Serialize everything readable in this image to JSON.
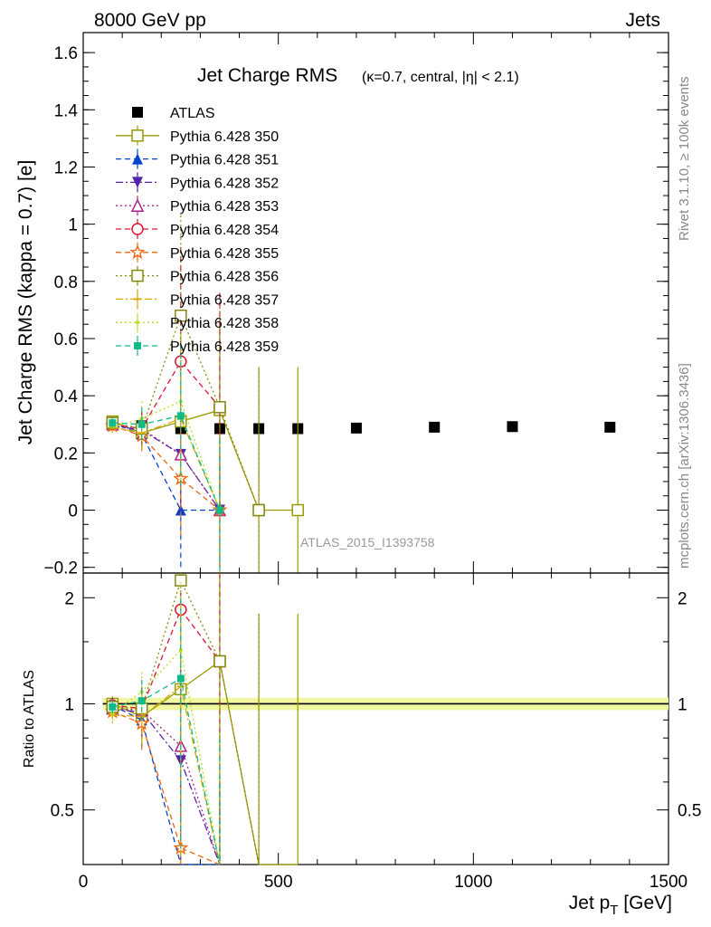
{
  "header": {
    "left": "8000 GeV pp",
    "right": "Jets"
  },
  "side_text": {
    "rivet": "Rivet 3.1.10, ≥ 100k events",
    "mcplots": "mcplots.cern.ch [arXiv:1306.3436]"
  },
  "watermark": "ATLAS_2015_I1393758",
  "chart_data": [
    {
      "type": "line",
      "panel": "main",
      "title": "Jet Charge RMS",
      "subtitle": "(κ=0.7, central, |η| < 2.1)",
      "xlabel": "",
      "ylabel": "Jet Charge RMS (kappa = 0.7) [e]",
      "xlim": [
        0,
        1500
      ],
      "ylim": [
        -0.22,
        1.67
      ],
      "yticks": [
        -0.2,
        0,
        0.2,
        0.4,
        0.6,
        0.8,
        1,
        1.2,
        1.4,
        1.6
      ],
      "ytick_labels": [
        "−0.2",
        "0",
        "0.2",
        "0.4",
        "0.6",
        "0.8",
        "1",
        "1.2",
        "1.4",
        "1.6"
      ],
      "legend_position": "top-left",
      "series": [
        {
          "name": "ATLAS",
          "color": "#000000",
          "marker": "square-filled",
          "line": "none",
          "x": [
            75,
            150,
            250,
            350,
            450,
            550,
            700,
            900,
            1100,
            1350
          ],
          "y": [
            0.31,
            0.295,
            0.285,
            0.285,
            0.285,
            0.285,
            0.287,
            0.29,
            0.292,
            0.29
          ],
          "err": [
            0.01,
            0.01,
            0.008,
            0.008,
            0.008,
            0.008,
            0.008,
            0.008,
            0.008,
            0.008
          ]
        },
        {
          "name": "Pythia 6.428 350",
          "color": "#999900",
          "marker": "square-open",
          "line": "solid",
          "x": [
            75,
            150,
            250,
            350,
            450,
            550
          ],
          "y": [
            0.31,
            0.27,
            0.31,
            0.35,
            0.0,
            0.0
          ],
          "err": [
            0.02,
            0.05,
            0.3,
            0.3,
            0.5,
            0.5
          ]
        },
        {
          "name": "Pythia 6.428 351",
          "color": "#0044cc",
          "marker": "triangle-up-filled",
          "line": "dashed",
          "x": [
            75,
            150,
            250,
            350
          ],
          "y": [
            0.305,
            0.265,
            0.0,
            0.0
          ],
          "err": [
            0.02,
            0.06,
            0.2,
            0.2
          ]
        },
        {
          "name": "Pythia 6.428 352",
          "color": "#5522aa",
          "marker": "triangle-down-filled",
          "line": "dashdot",
          "x": [
            75,
            150,
            250,
            350
          ],
          "y": [
            0.295,
            0.28,
            0.195,
            0.0
          ],
          "err": [
            0.02,
            0.06,
            0.2,
            0.2
          ]
        },
        {
          "name": "Pythia 6.428 353",
          "color": "#aa2288",
          "marker": "triangle-up-open",
          "line": "dotted",
          "x": [
            75,
            150,
            250,
            350
          ],
          "y": [
            0.3,
            0.285,
            0.195,
            0.0
          ],
          "err": [
            0.02,
            0.06,
            0.2,
            0.2
          ]
        },
        {
          "name": "Pythia 6.428 354",
          "color": "#dd1133",
          "marker": "circle-open",
          "line": "dashed",
          "x": [
            75,
            150,
            250,
            350
          ],
          "y": [
            0.3,
            0.285,
            0.52,
            0.36
          ],
          "err": [
            0.02,
            0.06,
            0.4,
            0.4
          ]
        },
        {
          "name": "Pythia 6.428 355",
          "color": "#ee6611",
          "marker": "star-open",
          "line": "dashed",
          "x": [
            75,
            150,
            250,
            350
          ],
          "y": [
            0.295,
            0.26,
            0.11,
            0.0
          ],
          "err": [
            0.02,
            0.06,
            0.2,
            0.2
          ]
        },
        {
          "name": "Pythia 6.428 356",
          "color": "#888811",
          "marker": "square-open",
          "line": "dotted",
          "x": [
            75,
            150,
            250,
            350,
            450
          ],
          "y": [
            0.305,
            0.285,
            0.68,
            0.36,
            0.0
          ],
          "err": [
            0.02,
            0.06,
            0.35,
            0.35,
            0.5
          ]
        },
        {
          "name": "Pythia 6.428 357",
          "color": "#ddaa00",
          "marker": "tick",
          "line": "dashdot",
          "x": [
            75,
            150,
            250,
            350
          ],
          "y": [
            0.29,
            0.27,
            0.32,
            0.0
          ],
          "err": [
            0.02,
            0.06,
            0.25,
            0.25
          ]
        },
        {
          "name": "Pythia 6.428 358",
          "color": "#bbdd22",
          "marker": "dot",
          "line": "dotted",
          "x": [
            75,
            150,
            250,
            350
          ],
          "y": [
            0.29,
            0.32,
            0.38,
            0.0
          ],
          "err": [
            0.02,
            0.06,
            0.25,
            0.25
          ]
        },
        {
          "name": "Pythia 6.428 359",
          "color": "#11bb88",
          "marker": "square-filled-small",
          "line": "dashed",
          "x": [
            75,
            150,
            250,
            350
          ],
          "y": [
            0.305,
            0.3,
            0.33,
            0.0
          ],
          "err": [
            0.02,
            0.06,
            0.25,
            0.25
          ]
        }
      ]
    },
    {
      "type": "line",
      "panel": "ratio",
      "xlabel": "Jet p_T [GeV]",
      "ylabel": "Ratio to ATLAS",
      "xlim": [
        0,
        1500
      ],
      "ylim": [
        0.35,
        2.35
      ],
      "yscale": "log",
      "xticks": [
        0,
        500,
        1000,
        1500
      ],
      "xtick_labels": [
        "0",
        "500",
        "1000",
        "1500"
      ],
      "yticks": [
        0.5,
        1,
        2
      ],
      "ytick_labels": [
        "0.5",
        "1",
        "2"
      ],
      "reference_band": {
        "x": [
          0,
          1500
        ],
        "y": 1.0
      },
      "series": [
        {
          "name": "Pythia 6.428 350",
          "x": [
            75,
            150,
            250,
            350,
            450,
            550
          ],
          "y": [
            1.0,
            0.92,
            1.1,
            1.32,
            0.0,
            0.0
          ],
          "err": [
            0.05,
            0.12,
            1.0,
            1.0,
            1.8,
            1.8
          ]
        },
        {
          "name": "Pythia 6.428 351",
          "x": [
            75,
            150,
            250,
            350
          ],
          "y": [
            0.99,
            0.9,
            0.0,
            0.0
          ],
          "err": [
            0.05,
            0.15,
            0.6,
            0.6
          ]
        },
        {
          "name": "Pythia 6.428 352",
          "x": [
            75,
            150,
            250,
            350
          ],
          "y": [
            0.96,
            0.95,
            0.69,
            0.0
          ],
          "err": [
            0.05,
            0.15,
            0.6,
            0.6
          ]
        },
        {
          "name": "Pythia 6.428 353",
          "x": [
            75,
            150,
            250,
            350
          ],
          "y": [
            0.97,
            0.96,
            0.76,
            0.0
          ],
          "err": [
            0.05,
            0.15,
            0.6,
            0.6
          ]
        },
        {
          "name": "Pythia 6.428 354",
          "x": [
            75,
            150,
            250,
            350
          ],
          "y": [
            0.99,
            0.97,
            1.85,
            1.32
          ],
          "err": [
            0.05,
            0.15,
            1.3,
            1.3
          ]
        },
        {
          "name": "Pythia 6.428 355",
          "x": [
            75,
            150,
            250,
            350
          ],
          "y": [
            0.95,
            0.88,
            0.39,
            0.0
          ],
          "err": [
            0.05,
            0.15,
            0.6,
            0.6
          ]
        },
        {
          "name": "Pythia 6.428 356",
          "x": [
            75,
            150,
            250,
            350,
            450
          ],
          "y": [
            0.98,
            0.97,
            2.24,
            1.32,
            0.0
          ],
          "err": [
            0.05,
            0.15,
            1.2,
            1.2,
            1.8
          ]
        },
        {
          "name": "Pythia 6.428 357",
          "x": [
            75,
            150,
            250,
            350
          ],
          "y": [
            0.93,
            0.92,
            1.12,
            0.0
          ],
          "err": [
            0.05,
            0.15,
            0.8,
            0.8
          ]
        },
        {
          "name": "Pythia 6.428 358",
          "x": [
            75,
            150,
            250,
            350
          ],
          "y": [
            0.94,
            1.08,
            1.42,
            0.0
          ],
          "err": [
            0.05,
            0.15,
            0.8,
            0.8
          ]
        },
        {
          "name": "Pythia 6.428 359",
          "x": [
            75,
            150,
            250,
            350
          ],
          "y": [
            0.98,
            1.02,
            1.18,
            0.0
          ],
          "err": [
            0.05,
            0.15,
            0.8,
            0.8
          ]
        }
      ]
    }
  ]
}
